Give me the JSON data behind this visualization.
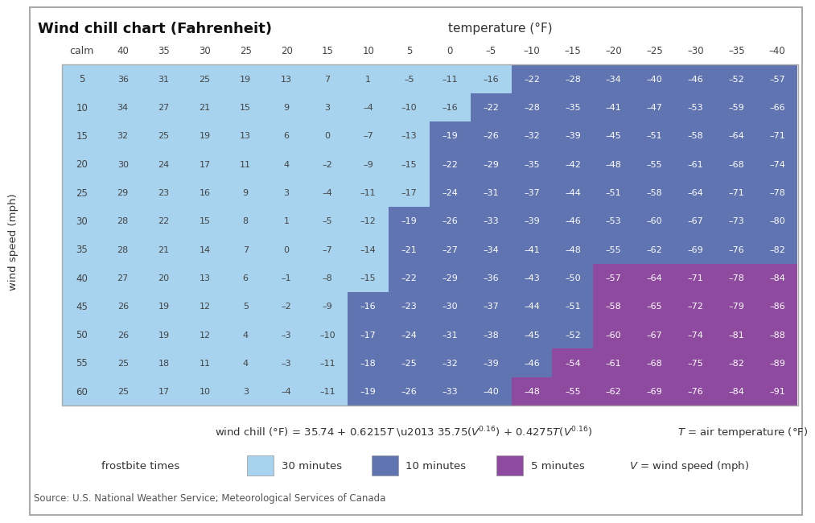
{
  "title": "Wind chill chart (Fahrenheit)",
  "temp_label": "temperature (°F)",
  "ylabel": "wind speed (mph)",
  "source": "Source: U.S. National Weather Service; Meteorological Services of Canada",
  "legend_label": "frostbite times",
  "legend_items": [
    "30 minutes",
    "10 minutes",
    "5 minutes"
  ],
  "legend_colors": [
    "#a8d3ee",
    "#5f74b0",
    "#8e4a9e"
  ],
  "temp_cols": [
    40,
    35,
    30,
    25,
    20,
    15,
    10,
    5,
    0,
    -5,
    -10,
    -15,
    -20,
    -25,
    -30,
    -35,
    -40
  ],
  "wind_rows": [
    5,
    10,
    15,
    20,
    25,
    30,
    35,
    40,
    45,
    50,
    55,
    60
  ],
  "data": [
    [
      36,
      31,
      25,
      19,
      13,
      7,
      1,
      -5,
      -11,
      -16,
      -22,
      -28,
      -34,
      -40,
      -46,
      -52,
      -57
    ],
    [
      34,
      27,
      21,
      15,
      9,
      3,
      -4,
      -10,
      -16,
      -22,
      -28,
      -35,
      -41,
      -47,
      -53,
      -59,
      -66
    ],
    [
      32,
      25,
      19,
      13,
      6,
      0,
      -7,
      -13,
      -19,
      -26,
      -32,
      -39,
      -45,
      -51,
      -58,
      -64,
      -71
    ],
    [
      30,
      24,
      17,
      11,
      4,
      -2,
      -9,
      -15,
      -22,
      -29,
      -35,
      -42,
      -48,
      -55,
      -61,
      -68,
      -74
    ],
    [
      29,
      23,
      16,
      9,
      3,
      -4,
      -11,
      -17,
      -24,
      -31,
      -37,
      -44,
      -51,
      -58,
      -64,
      -71,
      -78
    ],
    [
      28,
      22,
      15,
      8,
      1,
      -5,
      -12,
      -19,
      -26,
      -33,
      -39,
      -46,
      -53,
      -60,
      -67,
      -73,
      -80
    ],
    [
      28,
      21,
      14,
      7,
      0,
      -7,
      -14,
      -21,
      -27,
      -34,
      -41,
      -48,
      -55,
      -62,
      -69,
      -76,
      -82
    ],
    [
      27,
      20,
      13,
      6,
      -1,
      -8,
      -15,
      -22,
      -29,
      -36,
      -43,
      -50,
      -57,
      -64,
      -71,
      -78,
      -84
    ],
    [
      26,
      19,
      12,
      5,
      -2,
      -9,
      -16,
      -23,
      -30,
      -37,
      -44,
      -51,
      -58,
      -65,
      -72,
      -79,
      -86
    ],
    [
      26,
      19,
      12,
      4,
      -3,
      -10,
      -17,
      -24,
      -31,
      -38,
      -45,
      -52,
      -60,
      -67,
      -74,
      -81,
      -88
    ],
    [
      25,
      18,
      11,
      4,
      -3,
      -11,
      -18,
      -25,
      -32,
      -39,
      -46,
      -54,
      -61,
      -68,
      -75,
      -82,
      -89
    ],
    [
      25,
      17,
      10,
      3,
      -4,
      -11,
      -19,
      -26,
      -33,
      -40,
      -48,
      -55,
      -62,
      -69,
      -76,
      -84,
      -91
    ]
  ],
  "color_30min": "#a8d3ee",
  "color_10min": "#5f74b0",
  "color_5min": "#8e4a9e",
  "color_white_text": "#ffffff",
  "color_dark_text": "#444444",
  "bg_color": "#ffffff",
  "cell_colors": [
    [
      "30",
      "30",
      "30",
      "30",
      "30",
      "30",
      "30",
      "30",
      "30",
      "30",
      "10",
      "10",
      "10",
      "10",
      "10",
      "10",
      "10"
    ],
    [
      "30",
      "30",
      "30",
      "30",
      "30",
      "30",
      "30",
      "30",
      "30",
      "10",
      "10",
      "10",
      "10",
      "10",
      "10",
      "10",
      "10"
    ],
    [
      "30",
      "30",
      "30",
      "30",
      "30",
      "30",
      "30",
      "30",
      "10",
      "10",
      "10",
      "10",
      "10",
      "10",
      "10",
      "10",
      "10"
    ],
    [
      "30",
      "30",
      "30",
      "30",
      "30",
      "30",
      "30",
      "30",
      "10",
      "10",
      "10",
      "10",
      "10",
      "10",
      "10",
      "10",
      "10"
    ],
    [
      "30",
      "30",
      "30",
      "30",
      "30",
      "30",
      "30",
      "30",
      "10",
      "10",
      "10",
      "10",
      "10",
      "10",
      "10",
      "10",
      "10"
    ],
    [
      "30",
      "30",
      "30",
      "30",
      "30",
      "30",
      "30",
      "10",
      "10",
      "10",
      "10",
      "10",
      "10",
      "10",
      "10",
      "10",
      "10"
    ],
    [
      "30",
      "30",
      "30",
      "30",
      "30",
      "30",
      "30",
      "10",
      "10",
      "10",
      "10",
      "10",
      "10",
      "10",
      "10",
      "10",
      "10"
    ],
    [
      "30",
      "30",
      "30",
      "30",
      "30",
      "30",
      "30",
      "10",
      "10",
      "10",
      "10",
      "10",
      "05",
      "05",
      "05",
      "05",
      "05"
    ],
    [
      "30",
      "30",
      "30",
      "30",
      "30",
      "30",
      "10",
      "10",
      "10",
      "10",
      "10",
      "10",
      "05",
      "05",
      "05",
      "05",
      "05"
    ],
    [
      "30",
      "30",
      "30",
      "30",
      "30",
      "30",
      "10",
      "10",
      "10",
      "10",
      "10",
      "10",
      "05",
      "05",
      "05",
      "05",
      "05"
    ],
    [
      "30",
      "30",
      "30",
      "30",
      "30",
      "30",
      "10",
      "10",
      "10",
      "10",
      "10",
      "05",
      "05",
      "05",
      "05",
      "05",
      "05"
    ],
    [
      "30",
      "30",
      "30",
      "30",
      "30",
      "30",
      "10",
      "10",
      "10",
      "10",
      "05",
      "05",
      "05",
      "05",
      "05",
      "05",
      "05"
    ]
  ]
}
